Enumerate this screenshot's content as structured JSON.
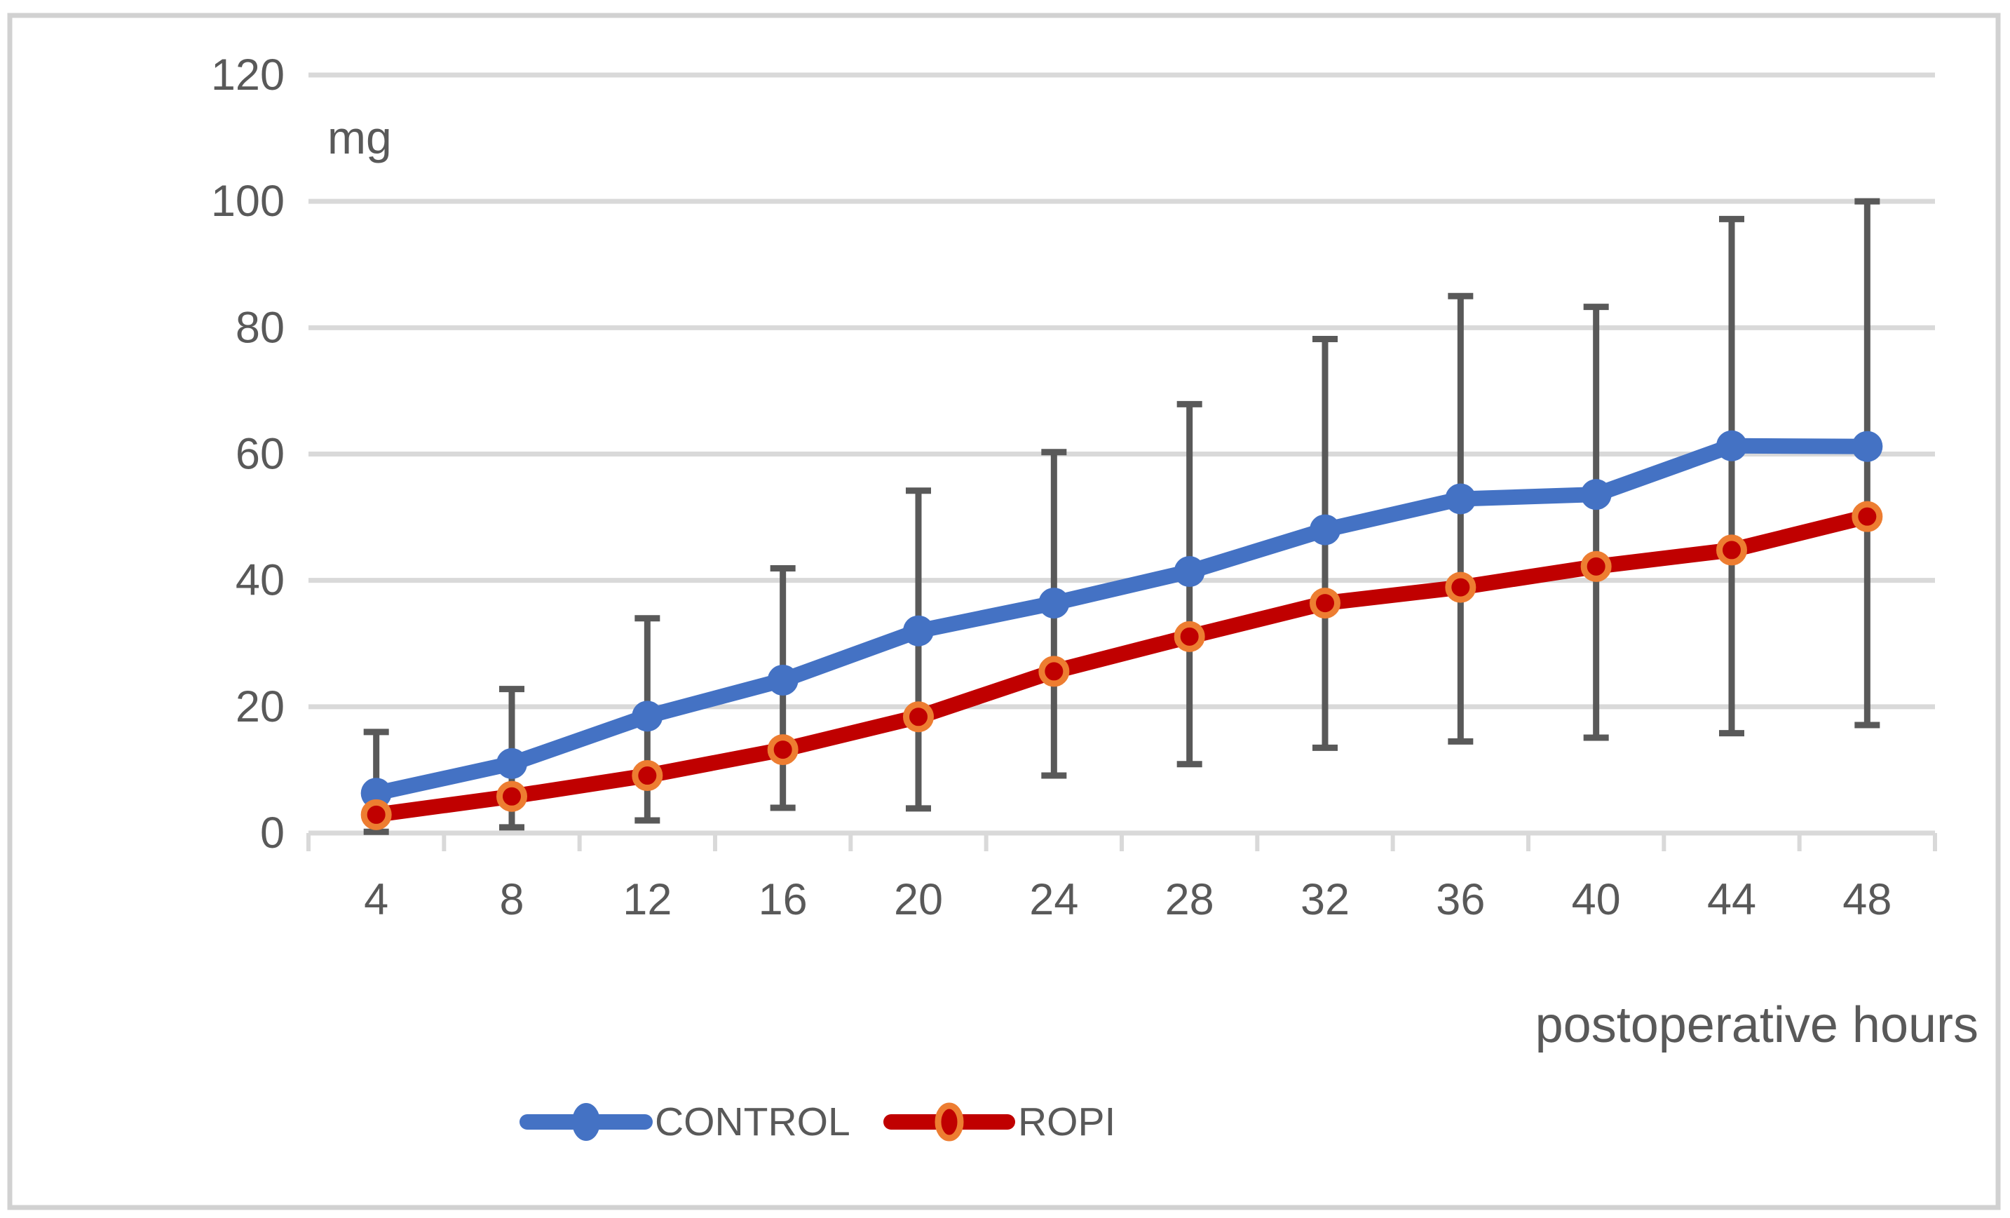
{
  "chart_data": {
    "type": "line",
    "title": "",
    "x": [
      4,
      8,
      12,
      16,
      20,
      24,
      28,
      32,
      36,
      40,
      44,
      48
    ],
    "xlabel": "postoperative hours",
    "ylabel": "mg",
    "ylim": [
      0,
      120
    ],
    "yticks": [
      0,
      20,
      40,
      60,
      80,
      100,
      120
    ],
    "grid": true,
    "legend_position": "bottom",
    "series": [
      {
        "name": "CONTROL",
        "color": "#4472C4",
        "marker": "circle",
        "values": [
          6.3,
          11.0,
          18.5,
          24.2,
          32.0,
          36.4,
          41.4,
          48.0,
          52.9,
          53.6,
          61.3,
          61.2
        ]
      },
      {
        "name": "ROPI",
        "color": "#C00000",
        "marker": "ringed-circle",
        "marker_ring_color": "#ED7D31",
        "values": [
          2.9,
          5.8,
          9.1,
          13.2,
          18.4,
          25.6,
          31.1,
          36.4,
          38.9,
          42.2,
          44.8,
          50.1
        ]
      }
    ],
    "error_bars": {
      "color": "#595959",
      "high": [
        16.0,
        22.8,
        34.0,
        41.9,
        54.2,
        60.3,
        67.9,
        78.2,
        85.0,
        83.3,
        97.2,
        100.0
      ],
      "low": [
        0.2,
        0.9,
        2.0,
        4.0,
        3.9,
        9.1,
        10.9,
        13.5,
        14.5,
        15.1,
        15.8,
        17.1
      ]
    }
  },
  "styles": {
    "grid_color": "#D9D9D9",
    "axis_color": "#D9D9D9",
    "text_color": "#595959",
    "border_color": "#D1D1D1",
    "background_color": "#FFFFFF"
  }
}
